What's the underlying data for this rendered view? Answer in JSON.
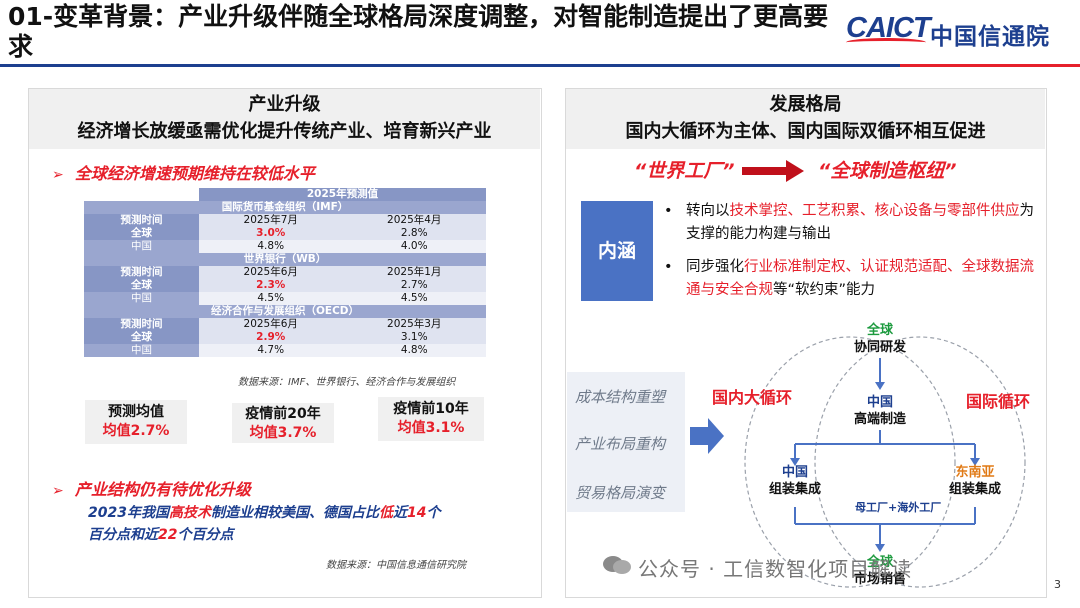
{
  "header": {
    "title": "01-变革背景：产业升级伴随全球格局深度调整，对智能制造提出了更高要求",
    "logo_latin": "CAICT",
    "logo_cn": "中国信通院"
  },
  "left": {
    "heading": "产业升级",
    "subheading": "经济增长放缓亟需优化提升传统产业、培育新兴产业",
    "bullet1": "全球经济增速预期维持在较低水平",
    "table": {
      "title": "2025年预测值",
      "groups": [
        {
          "name": "国际货币基金组织（IMF）",
          "time_label": "预测时间",
          "t1": "2025年7月",
          "t2": "2025年4月",
          "rows": [
            {
              "label": "全球",
              "v1": "3.0%",
              "v2": "2.8%"
            },
            {
              "label": "中国",
              "v1": "4.8%",
              "v2": "4.0%"
            }
          ]
        },
        {
          "name": "世界银行（WB）",
          "time_label": "预测时间",
          "t1": "2025年6月",
          "t2": "2025年1月",
          "rows": [
            {
              "label": "全球",
              "v1": "2.3%",
              "v2": "2.7%"
            },
            {
              "label": "中国",
              "v1": "4.5%",
              "v2": "4.5%"
            }
          ]
        },
        {
          "name": "经济合作与发展组织（OECD）",
          "time_label": "预测时间",
          "t1": "2025年6月",
          "t2": "2025年3月",
          "rows": [
            {
              "label": "全球",
              "v1": "2.9%",
              "v2": "3.1%"
            },
            {
              "label": "中国",
              "v1": "4.7%",
              "v2": "4.8%"
            }
          ]
        }
      ]
    },
    "source1": "数据来源：IMF、世界银行、经济合作与发展组织",
    "avg_boxes": [
      {
        "label": "预测均值",
        "value": "均值2.7%"
      },
      {
        "label": "疫情前20年",
        "value": "均值3.7%"
      },
      {
        "label": "疫情前10年",
        "value": "均值3.1%"
      }
    ],
    "bullet2": "产业结构仍有待优化升级",
    "para_a": "2023年我国",
    "para_b": "高技术",
    "para_c": "制造业相较美国、德国占比",
    "para_d": "低",
    "para_e": "近",
    "para_f": "14",
    "para_g": "个",
    "para_h": "百分点和近",
    "para_i": "22",
    "para_j": "个百分点",
    "source2": "数据来源：中国信息通信研究院"
  },
  "right": {
    "heading": "发展格局",
    "subheading": "国内大循环为主体、国内国际双循环相互促进",
    "from_label": "“世界工厂”",
    "to_label": "“全球制造枢纽”",
    "box_label": "内涵",
    "point1_a": "转向以",
    "point1_b": "技术掌控、工艺积累、核心设备与零部件供应",
    "point1_c": "为支撑的能力构建与输出",
    "point2_a": "同步强化",
    "point2_b": "行业标准制定权、认证规范适配、全球数据流通与安全合规",
    "point2_c": "等“软约束”能力",
    "left_items": [
      "成本结构重塑",
      "产业布局重构",
      "贸易格局演变"
    ],
    "domestic_loop": "国内大循环",
    "intl_loop": "国际循环",
    "nodes": {
      "top_a": "全球",
      "top_b": "协同研发",
      "mid_a": "中国",
      "mid_b": "高端制造",
      "left_a": "中国",
      "left_b": "组装集成",
      "right_a": "东南亚",
      "right_b": "组装集成",
      "bottom_a": "全球",
      "bottom_b": "市场销售"
    },
    "mother_label": "母工厂+海外工厂"
  },
  "footer": {
    "wechat": "公众号 · 工信数智化项目解读",
    "page": "3"
  },
  "colors": {
    "brand_blue": "#1d3f8f",
    "accent_red": "#e6202b",
    "green": "#1c9a3e",
    "orange": "#e07a16"
  }
}
